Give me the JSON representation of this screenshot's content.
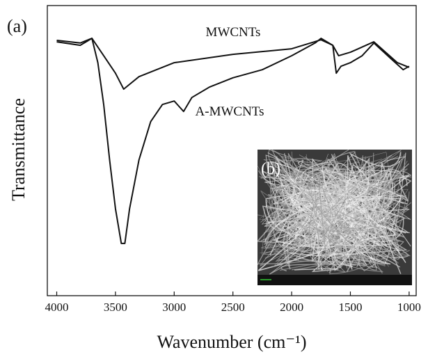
{
  "chart_data": {
    "type": "line",
    "panel_label": "(a)",
    "inset_label": "(b)",
    "x_label": "Wavenumber (cm⁻¹)",
    "y_label": "Transmittance",
    "xlim": [
      4080,
      940
    ],
    "xticks": [
      4000,
      3500,
      3000,
      2500,
      2000,
      1500,
      1000
    ],
    "ylim": [
      0,
      100
    ],
    "series": [
      {
        "name": "MWCNTs",
        "color": "#111111",
        "x": [
          4000,
          3800,
          3700,
          3600,
          3500,
          3430,
          3300,
          3000,
          2500,
          2000,
          1750,
          1650,
          1600,
          1500,
          1300,
          1100,
          1000
        ],
        "values": [
          88.0,
          87.1,
          88.7,
          82.7,
          76.7,
          71.2,
          75.5,
          80.3,
          83.2,
          85.1,
          88.2,
          86.3,
          82.7,
          83.9,
          87.5,
          80.3,
          78.7
        ]
      },
      {
        "name": "A-MWCNTs",
        "color": "#111111",
        "x": [
          4000,
          3800,
          3700,
          3650,
          3600,
          3550,
          3500,
          3450,
          3420,
          3380,
          3300,
          3200,
          3100,
          3000,
          2920,
          2850,
          2700,
          2500,
          2250,
          2000,
          1800,
          1750,
          1650,
          1620,
          1580,
          1500,
          1400,
          1300,
          1150,
          1050,
          1000
        ],
        "values": [
          87.5,
          86.3,
          88.7,
          80.3,
          65.9,
          46.8,
          30.0,
          18.0,
          18.0,
          30.0,
          46.8,
          60.0,
          65.9,
          67.1,
          63.5,
          68.3,
          71.9,
          75.1,
          77.9,
          82.7,
          87.1,
          88.7,
          86.3,
          76.7,
          79.1,
          80.3,
          82.7,
          87.1,
          81.5,
          77.9,
          79.1
        ]
      }
    ]
  }
}
